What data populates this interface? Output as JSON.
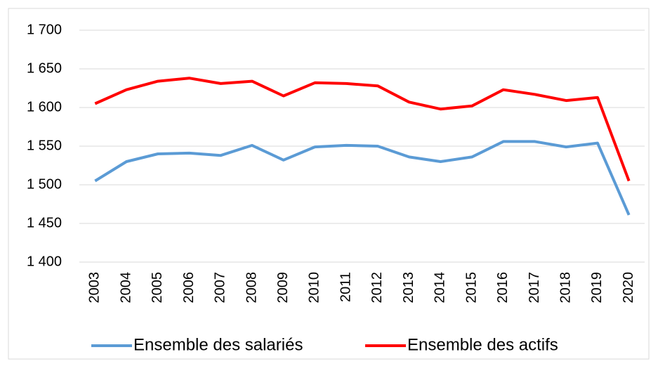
{
  "chart_data": {
    "type": "line",
    "categories": [
      "2003",
      "2004",
      "2005",
      "2006",
      "2007",
      "2008",
      "2009",
      "2010",
      "2011",
      "2012",
      "2013",
      "2014",
      "2015",
      "2016",
      "2017",
      "2018",
      "2019",
      "2020"
    ],
    "series": [
      {
        "name": "Ensemble des salariés",
        "color": "#5b9bd5",
        "values": [
          1505,
          1530,
          1540,
          1541,
          1538,
          1551,
          1532,
          1549,
          1551,
          1550,
          1536,
          1530,
          1536,
          1556,
          1556,
          1549,
          1554,
          1461
        ]
      },
      {
        "name": "Ensemble des actifs",
        "color": "#ff0000",
        "values": [
          1605,
          1623,
          1634,
          1638,
          1631,
          1634,
          1615,
          1632,
          1631,
          1628,
          1607,
          1598,
          1602,
          1623,
          1617,
          1609,
          1613,
          1505
        ]
      }
    ],
    "ylim": [
      1400,
      1700
    ],
    "yticks": [
      {
        "value": 1400,
        "label": "1 400"
      },
      {
        "value": 1450,
        "label": "1 450"
      },
      {
        "value": 1500,
        "label": "1 500"
      },
      {
        "value": 1550,
        "label": "1 550"
      },
      {
        "value": 1600,
        "label": "1 600"
      },
      {
        "value": 1650,
        "label": "1 650"
      },
      {
        "value": 1700,
        "label": "1 700"
      }
    ],
    "grid": true,
    "legend": "bottom"
  }
}
